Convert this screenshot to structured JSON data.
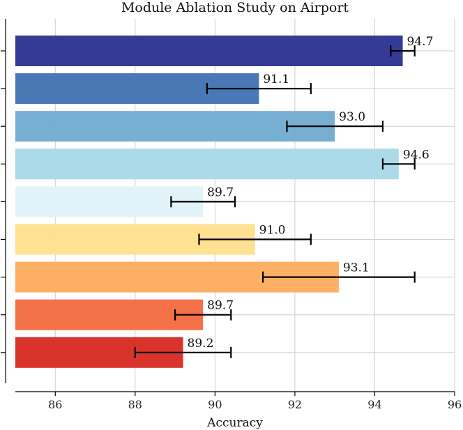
{
  "chart_data": {
    "type": "bar",
    "orientation": "horizontal",
    "title": "Module Ablation Study on Airport",
    "xlabel": "Accuracy",
    "ylabel": "",
    "xlim": [
      85,
      96
    ],
    "xticks": [
      86,
      88,
      90,
      92,
      94,
      96
    ],
    "grid": true,
    "series": [
      {
        "name": "Accuracy",
        "values": [
          94.7,
          91.1,
          93.0,
          94.6,
          89.7,
          91.0,
          93.1,
          89.7,
          89.2
        ],
        "error": [
          0.3,
          1.3,
          1.2,
          0.4,
          0.8,
          1.4,
          1.9,
          0.7,
          1.2
        ],
        "labels": [
          "94.7",
          "91.1",
          "93.0",
          "94.6",
          "89.7",
          "91.0",
          "93.1",
          "89.7",
          "89.2"
        ],
        "colors": [
          "#313695",
          "#4575b4",
          "#74add1",
          "#abd9e9",
          "#e0f3f8",
          "#fee090",
          "#fdae61",
          "#f46d43",
          "#d73027"
        ]
      }
    ]
  }
}
